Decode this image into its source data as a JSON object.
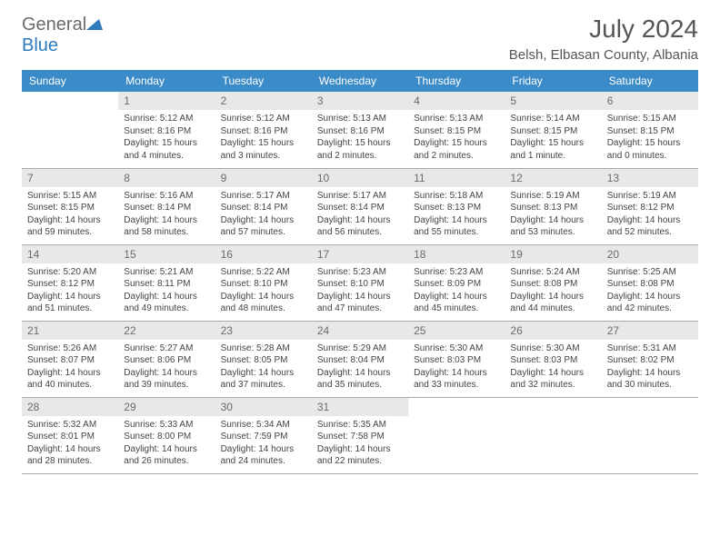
{
  "logo": {
    "general": "General",
    "blue": "Blue"
  },
  "title": "July 2024",
  "location": "Belsh, Elbasan County, Albania",
  "colors": {
    "header_bg": "#3b8bc9",
    "header_text": "#ffffff",
    "daynum_bg": "#e8e8e8",
    "daynum_text": "#6b6b6b",
    "body_text": "#444444",
    "logo_gray": "#6b6b6b",
    "logo_blue": "#2d7bbd",
    "border": "#aaaaaa"
  },
  "weekdays": [
    "Sunday",
    "Monday",
    "Tuesday",
    "Wednesday",
    "Thursday",
    "Friday",
    "Saturday"
  ],
  "weeks": [
    [
      null,
      {
        "d": "1",
        "sr": "Sunrise: 5:12 AM",
        "ss": "Sunset: 8:16 PM",
        "dl1": "Daylight: 15 hours",
        "dl2": "and 4 minutes."
      },
      {
        "d": "2",
        "sr": "Sunrise: 5:12 AM",
        "ss": "Sunset: 8:16 PM",
        "dl1": "Daylight: 15 hours",
        "dl2": "and 3 minutes."
      },
      {
        "d": "3",
        "sr": "Sunrise: 5:13 AM",
        "ss": "Sunset: 8:16 PM",
        "dl1": "Daylight: 15 hours",
        "dl2": "and 2 minutes."
      },
      {
        "d": "4",
        "sr": "Sunrise: 5:13 AM",
        "ss": "Sunset: 8:15 PM",
        "dl1": "Daylight: 15 hours",
        "dl2": "and 2 minutes."
      },
      {
        "d": "5",
        "sr": "Sunrise: 5:14 AM",
        "ss": "Sunset: 8:15 PM",
        "dl1": "Daylight: 15 hours",
        "dl2": "and 1 minute."
      },
      {
        "d": "6",
        "sr": "Sunrise: 5:15 AM",
        "ss": "Sunset: 8:15 PM",
        "dl1": "Daylight: 15 hours",
        "dl2": "and 0 minutes."
      }
    ],
    [
      {
        "d": "7",
        "sr": "Sunrise: 5:15 AM",
        "ss": "Sunset: 8:15 PM",
        "dl1": "Daylight: 14 hours",
        "dl2": "and 59 minutes."
      },
      {
        "d": "8",
        "sr": "Sunrise: 5:16 AM",
        "ss": "Sunset: 8:14 PM",
        "dl1": "Daylight: 14 hours",
        "dl2": "and 58 minutes."
      },
      {
        "d": "9",
        "sr": "Sunrise: 5:17 AM",
        "ss": "Sunset: 8:14 PM",
        "dl1": "Daylight: 14 hours",
        "dl2": "and 57 minutes."
      },
      {
        "d": "10",
        "sr": "Sunrise: 5:17 AM",
        "ss": "Sunset: 8:14 PM",
        "dl1": "Daylight: 14 hours",
        "dl2": "and 56 minutes."
      },
      {
        "d": "11",
        "sr": "Sunrise: 5:18 AM",
        "ss": "Sunset: 8:13 PM",
        "dl1": "Daylight: 14 hours",
        "dl2": "and 55 minutes."
      },
      {
        "d": "12",
        "sr": "Sunrise: 5:19 AM",
        "ss": "Sunset: 8:13 PM",
        "dl1": "Daylight: 14 hours",
        "dl2": "and 53 minutes."
      },
      {
        "d": "13",
        "sr": "Sunrise: 5:19 AM",
        "ss": "Sunset: 8:12 PM",
        "dl1": "Daylight: 14 hours",
        "dl2": "and 52 minutes."
      }
    ],
    [
      {
        "d": "14",
        "sr": "Sunrise: 5:20 AM",
        "ss": "Sunset: 8:12 PM",
        "dl1": "Daylight: 14 hours",
        "dl2": "and 51 minutes."
      },
      {
        "d": "15",
        "sr": "Sunrise: 5:21 AM",
        "ss": "Sunset: 8:11 PM",
        "dl1": "Daylight: 14 hours",
        "dl2": "and 49 minutes."
      },
      {
        "d": "16",
        "sr": "Sunrise: 5:22 AM",
        "ss": "Sunset: 8:10 PM",
        "dl1": "Daylight: 14 hours",
        "dl2": "and 48 minutes."
      },
      {
        "d": "17",
        "sr": "Sunrise: 5:23 AM",
        "ss": "Sunset: 8:10 PM",
        "dl1": "Daylight: 14 hours",
        "dl2": "and 47 minutes."
      },
      {
        "d": "18",
        "sr": "Sunrise: 5:23 AM",
        "ss": "Sunset: 8:09 PM",
        "dl1": "Daylight: 14 hours",
        "dl2": "and 45 minutes."
      },
      {
        "d": "19",
        "sr": "Sunrise: 5:24 AM",
        "ss": "Sunset: 8:08 PM",
        "dl1": "Daylight: 14 hours",
        "dl2": "and 44 minutes."
      },
      {
        "d": "20",
        "sr": "Sunrise: 5:25 AM",
        "ss": "Sunset: 8:08 PM",
        "dl1": "Daylight: 14 hours",
        "dl2": "and 42 minutes."
      }
    ],
    [
      {
        "d": "21",
        "sr": "Sunrise: 5:26 AM",
        "ss": "Sunset: 8:07 PM",
        "dl1": "Daylight: 14 hours",
        "dl2": "and 40 minutes."
      },
      {
        "d": "22",
        "sr": "Sunrise: 5:27 AM",
        "ss": "Sunset: 8:06 PM",
        "dl1": "Daylight: 14 hours",
        "dl2": "and 39 minutes."
      },
      {
        "d": "23",
        "sr": "Sunrise: 5:28 AM",
        "ss": "Sunset: 8:05 PM",
        "dl1": "Daylight: 14 hours",
        "dl2": "and 37 minutes."
      },
      {
        "d": "24",
        "sr": "Sunrise: 5:29 AM",
        "ss": "Sunset: 8:04 PM",
        "dl1": "Daylight: 14 hours",
        "dl2": "and 35 minutes."
      },
      {
        "d": "25",
        "sr": "Sunrise: 5:30 AM",
        "ss": "Sunset: 8:03 PM",
        "dl1": "Daylight: 14 hours",
        "dl2": "and 33 minutes."
      },
      {
        "d": "26",
        "sr": "Sunrise: 5:30 AM",
        "ss": "Sunset: 8:03 PM",
        "dl1": "Daylight: 14 hours",
        "dl2": "and 32 minutes."
      },
      {
        "d": "27",
        "sr": "Sunrise: 5:31 AM",
        "ss": "Sunset: 8:02 PM",
        "dl1": "Daylight: 14 hours",
        "dl2": "and 30 minutes."
      }
    ],
    [
      {
        "d": "28",
        "sr": "Sunrise: 5:32 AM",
        "ss": "Sunset: 8:01 PM",
        "dl1": "Daylight: 14 hours",
        "dl2": "and 28 minutes."
      },
      {
        "d": "29",
        "sr": "Sunrise: 5:33 AM",
        "ss": "Sunset: 8:00 PM",
        "dl1": "Daylight: 14 hours",
        "dl2": "and 26 minutes."
      },
      {
        "d": "30",
        "sr": "Sunrise: 5:34 AM",
        "ss": "Sunset: 7:59 PM",
        "dl1": "Daylight: 14 hours",
        "dl2": "and 24 minutes."
      },
      {
        "d": "31",
        "sr": "Sunrise: 5:35 AM",
        "ss": "Sunset: 7:58 PM",
        "dl1": "Daylight: 14 hours",
        "dl2": "and 22 minutes."
      },
      null,
      null,
      null
    ]
  ]
}
